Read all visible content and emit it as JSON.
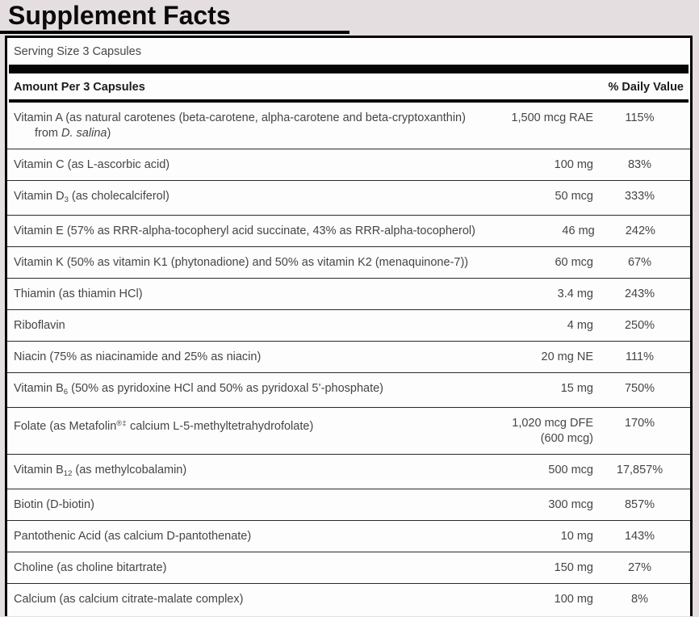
{
  "title": "Supplement Facts",
  "serving_size": "Serving Size 3 Capsules",
  "header": {
    "amount_label": "Amount Per 3 Capsules",
    "dv_label": "% Daily Value"
  },
  "colors": {
    "page_background": "#e5dee0",
    "panel_background": "#fdfdfd",
    "rule_color": "#000000",
    "text_color": "#454448"
  },
  "rows": [
    {
      "label": [
        [
          {
            "t": "Vitamin A (as natural carotenes (beta-carotene, alpha-carotene and beta-cryptoxanthin)"
          }
        ],
        [
          {
            "t": "from "
          },
          {
            "t": "D. salina",
            "s": "i"
          },
          {
            "t": ")"
          }
        ]
      ],
      "amount": [
        "1,500 mcg RAE"
      ],
      "dv": "115%"
    },
    {
      "label": [
        [
          {
            "t": "Vitamin C (as L-ascorbic acid)"
          }
        ]
      ],
      "amount": [
        "100 mg"
      ],
      "dv": "83%"
    },
    {
      "label": [
        [
          {
            "t": "Vitamin D"
          },
          {
            "t": "3",
            "s": "sub"
          },
          {
            "t": " (as cholecalciferol)"
          }
        ]
      ],
      "amount": [
        "50 mcg"
      ],
      "dv": "333%"
    },
    {
      "label": [
        [
          {
            "t": "Vitamin E (57% as RRR-alpha-tocopheryl acid succinate, 43% as RRR-alpha-tocopherol)"
          }
        ]
      ],
      "amount": [
        "46 mg"
      ],
      "dv": "242%"
    },
    {
      "label": [
        [
          {
            "t": "Vitamin K (50% as vitamin K1 (phytonadione) and 50% as vitamin K2 (menaquinone-7))"
          }
        ]
      ],
      "amount": [
        "60 mcg"
      ],
      "dv": "67%"
    },
    {
      "label": [
        [
          {
            "t": "Thiamin (as thiamin HCl)"
          }
        ]
      ],
      "amount": [
        "3.4 mg"
      ],
      "dv": "243%"
    },
    {
      "label": [
        [
          {
            "t": "Riboflavin"
          }
        ]
      ],
      "amount": [
        "4 mg"
      ],
      "dv": "250%"
    },
    {
      "label": [
        [
          {
            "t": "Niacin (75% as niacinamide and 25% as niacin)"
          }
        ]
      ],
      "amount": [
        "20 mg NE"
      ],
      "dv": "111%"
    },
    {
      "label": [
        [
          {
            "t": "Vitamin B"
          },
          {
            "t": "6",
            "s": "sub"
          },
          {
            "t": " (50% as pyridoxine HCl and 50% as pyridoxal 5’-phosphate)"
          }
        ]
      ],
      "amount": [
        "15 mg"
      ],
      "dv": "750%"
    },
    {
      "label": [
        [
          {
            "t": "Folate (as Metafolin"
          },
          {
            "t": "®‡",
            "s": "sup"
          },
          {
            "t": " calcium L-5-methyltetrahydrofolate)"
          }
        ]
      ],
      "amount": [
        "1,020 mcg DFE",
        "(600 mcg)"
      ],
      "dv": "170%"
    },
    {
      "label": [
        [
          {
            "t": "Vitamin B"
          },
          {
            "t": "12",
            "s": "sub"
          },
          {
            "t": " (as methylcobalamin)"
          }
        ]
      ],
      "amount": [
        "500 mcg"
      ],
      "dv": "17,857%"
    },
    {
      "label": [
        [
          {
            "t": "Biotin (D-biotin)"
          }
        ]
      ],
      "amount": [
        "300 mcg"
      ],
      "dv": "857%"
    },
    {
      "label": [
        [
          {
            "t": "Pantothenic Acid (as calcium D-pantothenate)"
          }
        ]
      ],
      "amount": [
        "10 mg"
      ],
      "dv": "143%"
    },
    {
      "label": [
        [
          {
            "t": "Choline (as choline bitartrate)"
          }
        ]
      ],
      "amount": [
        "150 mg"
      ],
      "dv": "27%"
    },
    {
      "label": [
        [
          {
            "t": "Calcium (as calcium citrate-malate complex)"
          }
        ]
      ],
      "amount": [
        "100 mg"
      ],
      "dv": "8%"
    }
  ]
}
